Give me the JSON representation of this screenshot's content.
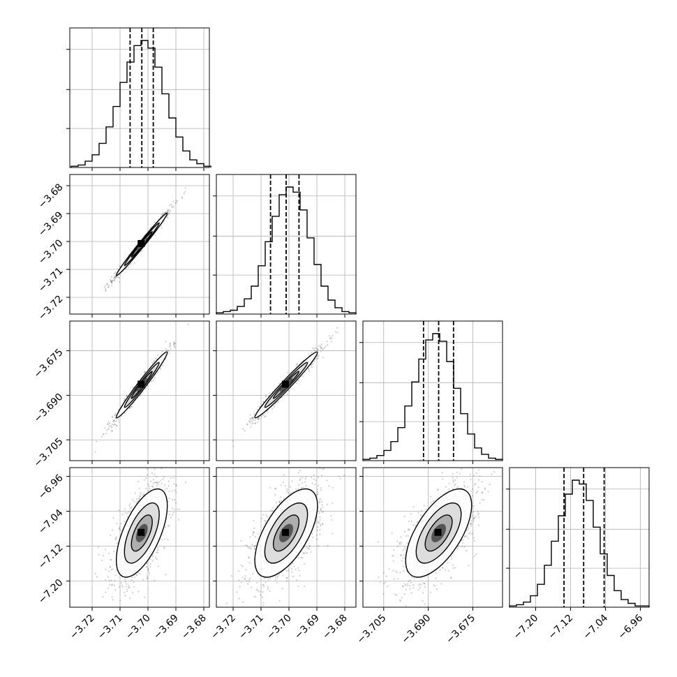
{
  "chart_data": {
    "type": "scatter",
    "kind": "corner-plot",
    "n_params": 4,
    "title": "",
    "parameter_labels": [
      "",
      "",
      "",
      ""
    ],
    "ranges": [
      [
        -3.728,
        -3.678
      ],
      [
        -3.726,
        -3.676
      ],
      [
        -3.712,
        -3.665
      ],
      [
        -7.26,
        -6.94
      ]
    ],
    "ticks": [
      [
        "−3.72",
        "−3.71",
        "−3.70",
        "−3.69",
        "−3.68"
      ],
      [
        "−3.72",
        "−3.71",
        "−3.70",
        "−3.69",
        "−3.68"
      ],
      [
        "−3.705",
        "−3.690",
        "−3.675"
      ],
      [
        "−7.20",
        "−7.12",
        "−7.04",
        "−6.96"
      ]
    ],
    "tick_values": [
      [
        -3.72,
        -3.71,
        -3.7,
        -3.69,
        -3.68
      ],
      [
        -3.72,
        -3.71,
        -3.7,
        -3.69,
        -3.68
      ],
      [
        -3.705,
        -3.69,
        -3.675
      ],
      [
        -7.2,
        -7.12,
        -7.04,
        -6.96
      ]
    ],
    "quantiles": [
      [
        -3.7064,
        -3.7022,
        -3.6981
      ],
      [
        -3.7066,
        -3.701,
        -3.6964
      ],
      [
        -3.6916,
        -3.6865,
        -3.6815
      ],
      [
        -7.135,
        -7.09,
        -7.043
      ]
    ],
    "histograms": [
      {
        "bin_edges_start": -3.7275,
        "bin_width": 0.0025,
        "counts": [
          0.01,
          0.02,
          0.05,
          0.1,
          0.19,
          0.32,
          0.48,
          0.67,
          0.83,
          0.96,
          1.0,
          0.94,
          0.79,
          0.58,
          0.39,
          0.24,
          0.13,
          0.06,
          0.03,
          0.01
        ]
      },
      {
        "bin_edges_start": -3.726,
        "bin_width": 0.0025,
        "counts": [
          0.01,
          0.02,
          0.03,
          0.06,
          0.12,
          0.22,
          0.38,
          0.57,
          0.77,
          0.94,
          1.0,
          0.96,
          0.82,
          0.6,
          0.39,
          0.22,
          0.11,
          0.05,
          0.02,
          0.01
        ]
      },
      {
        "bin_edges_start": -3.712,
        "bin_width": 0.00235,
        "counts": [
          0.01,
          0.02,
          0.04,
          0.08,
          0.15,
          0.26,
          0.43,
          0.62,
          0.8,
          0.95,
          1.0,
          0.94,
          0.78,
          0.57,
          0.37,
          0.21,
          0.1,
          0.05,
          0.02,
          0.01
        ]
      },
      {
        "bin_edges_start": -7.26,
        "bin_width": 0.016,
        "counts": [
          0.01,
          0.02,
          0.04,
          0.09,
          0.18,
          0.33,
          0.52,
          0.72,
          0.89,
          1.0,
          0.97,
          0.84,
          0.63,
          0.42,
          0.25,
          0.13,
          0.06,
          0.03,
          0.01,
          0.01
        ]
      }
    ],
    "correlations": [
      [
        1.0,
        0.99,
        0.98,
        0.62
      ],
      [
        0.99,
        1.0,
        0.98,
        0.62
      ],
      [
        0.98,
        0.98,
        1.0,
        0.63
      ],
      [
        0.62,
        0.62,
        0.63,
        1.0
      ]
    ],
    "grid": true,
    "contour_levels": 3,
    "line_color": "#000000",
    "sample_color": "#555555",
    "grid_color": "#b0b0b0"
  }
}
